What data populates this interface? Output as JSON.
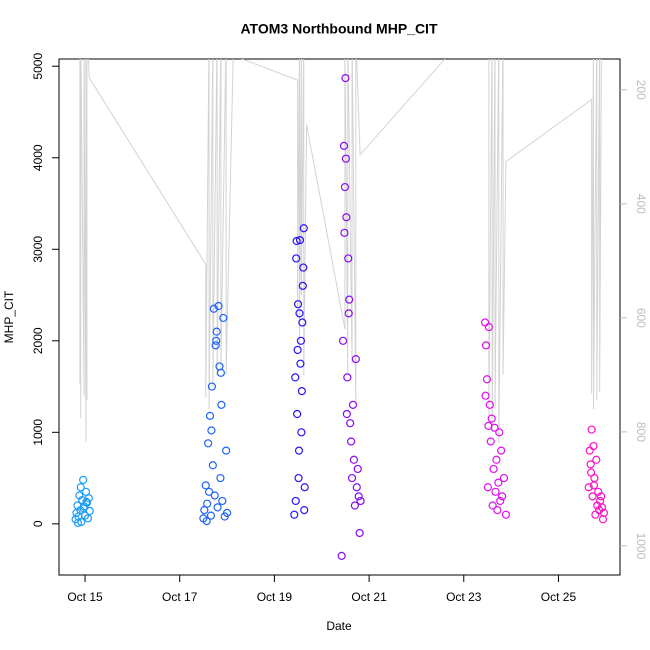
{
  "chart_data": {
    "type": "scatter",
    "title": "ATOM3 Northbound MHP_CIT",
    "x_label": "Date",
    "y_label": "MHP_CIT",
    "xlim": [
      14.45,
      26.3
    ],
    "xticks": [
      {
        "value": 15,
        "label": "Oct 15"
      },
      {
        "value": 17,
        "label": "Oct 17"
      },
      {
        "value": 19,
        "label": "Oct 19"
      },
      {
        "value": 21,
        "label": "Oct 21"
      },
      {
        "value": 23,
        "label": "Oct 23"
      },
      {
        "value": 25,
        "label": "Oct 25"
      }
    ],
    "ylim": [
      -559,
      5079
    ],
    "yticks": [
      0,
      1000,
      2000,
      3000,
      4000,
      5000
    ],
    "y2lim": [
      1051,
      146
    ],
    "y2ticks": [
      200,
      400,
      600,
      800,
      1000
    ],
    "series": [
      {
        "color": "#1a9cf7",
        "x": [
          14.8,
          14.82,
          14.84,
          14.86,
          14.88,
          14.9,
          14.92,
          14.94,
          14.96,
          14.98,
          15.0,
          15.02,
          15.04,
          15.06,
          15.08,
          15.1,
          14.85,
          14.91,
          14.97,
          15.03
        ],
        "values": [
          50,
          120,
          200,
          80,
          310,
          150,
          20,
          260,
          480,
          190,
          90,
          350,
          230,
          60,
          280,
          140,
          10,
          400,
          170,
          240
        ]
      },
      {
        "color": "#1e64f6",
        "x": [
          17.5,
          17.52,
          17.55,
          17.58,
          17.6,
          17.62,
          17.64,
          17.66,
          17.68,
          17.7,
          17.72,
          17.74,
          17.76,
          17.78,
          17.8,
          17.82,
          17.84,
          17.86,
          17.88,
          17.9,
          17.92,
          17.95,
          17.98,
          18.0,
          17.57,
          17.67,
          17.77,
          17.87
        ],
        "values": [
          60,
          150,
          420,
          220,
          880,
          350,
          1180,
          90,
          1500,
          640,
          2350,
          310,
          1950,
          2100,
          180,
          2380,
          1720,
          500,
          1300,
          250,
          2250,
          80,
          800,
          120,
          30,
          1020,
          2000,
          1650
        ]
      },
      {
        "color": "#2a14f5",
        "x": [
          19.42,
          19.44,
          19.46,
          19.48,
          19.5,
          19.52,
          19.54,
          19.56,
          19.58,
          19.6,
          19.62,
          19.64,
          19.45,
          19.49,
          19.53,
          19.57,
          19.61,
          19.47,
          19.51,
          19.55,
          19.59,
          19.63
        ],
        "values": [
          100,
          1600,
          2900,
          1200,
          2400,
          800,
          3100,
          2000,
          1450,
          2600,
          3230,
          400,
          250,
          1900,
          2300,
          1000,
          2800,
          3090,
          500,
          1750,
          2200,
          150
        ]
      },
      {
        "color": "#8a0cf3",
        "x": [
          20.42,
          20.45,
          20.47,
          20.49,
          20.5,
          20.52,
          20.54,
          20.56,
          20.58,
          20.6,
          20.62,
          20.64,
          20.66,
          20.68,
          20.7,
          20.72,
          20.74,
          20.76,
          20.78,
          20.8,
          20.82,
          20.48,
          20.51,
          20.53,
          20.57
        ],
        "values": [
          -350,
          2000,
          4130,
          3680,
          4870,
          3350,
          1600,
          2900,
          2450,
          1100,
          900,
          500,
          1300,
          700,
          200,
          1800,
          400,
          600,
          300,
          -100,
          250,
          3180,
          3990,
          1200,
          2300
        ]
      },
      {
        "color": "#e00ff0",
        "x": [
          23.45,
          23.47,
          23.49,
          23.51,
          23.53,
          23.55,
          23.57,
          23.59,
          23.61,
          23.63,
          23.65,
          23.67,
          23.69,
          23.71,
          23.73,
          23.75,
          23.77,
          23.79,
          23.81,
          23.85,
          23.89,
          23.46,
          23.52
        ],
        "values": [
          2200,
          1950,
          1580,
          400,
          2150,
          1300,
          900,
          1150,
          200,
          600,
          1050,
          350,
          700,
          150,
          450,
          1000,
          250,
          800,
          300,
          500,
          100,
          1400,
          1070
        ]
      },
      {
        "color": "#ff10c8",
        "x": [
          25.64,
          25.66,
          25.68,
          25.7,
          25.72,
          25.74,
          25.76,
          25.78,
          25.8,
          25.82,
          25.84,
          25.86,
          25.88,
          25.9,
          25.92,
          25.94,
          25.96,
          25.69,
          25.75
        ],
        "values": [
          400,
          800,
          650,
          1030,
          300,
          850,
          500,
          100,
          700,
          200,
          350,
          150,
          250,
          300,
          180,
          50,
          120,
          560,
          420
        ]
      },
      {
        "type": "line",
        "axis": "y2",
        "color": "#d3d3d3",
        "x": [
          14.89,
          14.89,
          14.91,
          14.91,
          14.98,
          14.98,
          15.02,
          15.02,
          15.04,
          15.04,
          15.09,
          17.55,
          17.55,
          17.62,
          17.62,
          17.7,
          17.7,
          17.79,
          17.79,
          17.87,
          17.87,
          17.98,
          17.98,
          18.13,
          19.49,
          19.49,
          19.53,
          19.53,
          19.57,
          19.57,
          19.62,
          19.62,
          19.68,
          20.49,
          20.49,
          20.55,
          20.55,
          20.64,
          20.64,
          20.72,
          20.72,
          20.81,
          22.77,
          23.53,
          23.53,
          23.6,
          23.6,
          23.66,
          23.66,
          23.74,
          23.74,
          23.83,
          23.83,
          23.89,
          25.7,
          25.7,
          25.74,
          25.74,
          25.81,
          25.81,
          25.87,
          25.87,
          25.91
        ],
        "values": [
          715,
          100,
          776,
          100,
          738,
          100,
          817,
          100,
          745,
          100,
          179,
          506,
          740,
          100,
          760,
          120,
          720,
          100,
          700,
          100,
          690,
          100,
          700,
          140,
          183,
          600,
          100,
          650,
          100,
          560,
          100,
          700,
          261,
          620,
          100,
          700,
          100,
          680,
          100,
          750,
          100,
          314,
          130,
          100,
          780,
          100,
          800,
          100,
          760,
          100,
          820,
          100,
          700,
          326,
          217,
          733,
          100,
          760,
          100,
          745,
          100,
          730,
          100
        ]
      }
    ]
  }
}
